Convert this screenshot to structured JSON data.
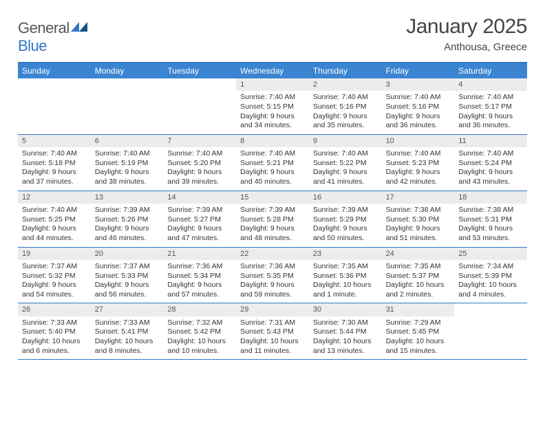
{
  "brand": {
    "word1": "General",
    "word2": "Blue"
  },
  "title": "January 2025",
  "location": "Anthousa, Greece",
  "colors": {
    "accent": "#3a84d1",
    "rule": "#2f78c4",
    "daynum_bg": "#ececec"
  },
  "dow": [
    "Sunday",
    "Monday",
    "Tuesday",
    "Wednesday",
    "Thursday",
    "Friday",
    "Saturday"
  ],
  "weeks": [
    [
      {
        "n": "",
        "lines": []
      },
      {
        "n": "",
        "lines": []
      },
      {
        "n": "",
        "lines": []
      },
      {
        "n": "1",
        "lines": [
          "Sunrise: 7:40 AM",
          "Sunset: 5:15 PM",
          "Daylight: 9 hours and 34 minutes."
        ]
      },
      {
        "n": "2",
        "lines": [
          "Sunrise: 7:40 AM",
          "Sunset: 5:16 PM",
          "Daylight: 9 hours and 35 minutes."
        ]
      },
      {
        "n": "3",
        "lines": [
          "Sunrise: 7:40 AM",
          "Sunset: 5:16 PM",
          "Daylight: 9 hours and 36 minutes."
        ]
      },
      {
        "n": "4",
        "lines": [
          "Sunrise: 7:40 AM",
          "Sunset: 5:17 PM",
          "Daylight: 9 hours and 36 minutes."
        ]
      }
    ],
    [
      {
        "n": "5",
        "lines": [
          "Sunrise: 7:40 AM",
          "Sunset: 5:18 PM",
          "Daylight: 9 hours and 37 minutes."
        ]
      },
      {
        "n": "6",
        "lines": [
          "Sunrise: 7:40 AM",
          "Sunset: 5:19 PM",
          "Daylight: 9 hours and 38 minutes."
        ]
      },
      {
        "n": "7",
        "lines": [
          "Sunrise: 7:40 AM",
          "Sunset: 5:20 PM",
          "Daylight: 9 hours and 39 minutes."
        ]
      },
      {
        "n": "8",
        "lines": [
          "Sunrise: 7:40 AM",
          "Sunset: 5:21 PM",
          "Daylight: 9 hours and 40 minutes."
        ]
      },
      {
        "n": "9",
        "lines": [
          "Sunrise: 7:40 AM",
          "Sunset: 5:22 PM",
          "Daylight: 9 hours and 41 minutes."
        ]
      },
      {
        "n": "10",
        "lines": [
          "Sunrise: 7:40 AM",
          "Sunset: 5:23 PM",
          "Daylight: 9 hours and 42 minutes."
        ]
      },
      {
        "n": "11",
        "lines": [
          "Sunrise: 7:40 AM",
          "Sunset: 5:24 PM",
          "Daylight: 9 hours and 43 minutes."
        ]
      }
    ],
    [
      {
        "n": "12",
        "lines": [
          "Sunrise: 7:40 AM",
          "Sunset: 5:25 PM",
          "Daylight: 9 hours and 44 minutes."
        ]
      },
      {
        "n": "13",
        "lines": [
          "Sunrise: 7:39 AM",
          "Sunset: 5:26 PM",
          "Daylight: 9 hours and 46 minutes."
        ]
      },
      {
        "n": "14",
        "lines": [
          "Sunrise: 7:39 AM",
          "Sunset: 5:27 PM",
          "Daylight: 9 hours and 47 minutes."
        ]
      },
      {
        "n": "15",
        "lines": [
          "Sunrise: 7:39 AM",
          "Sunset: 5:28 PM",
          "Daylight: 9 hours and 48 minutes."
        ]
      },
      {
        "n": "16",
        "lines": [
          "Sunrise: 7:39 AM",
          "Sunset: 5:29 PM",
          "Daylight: 9 hours and 50 minutes."
        ]
      },
      {
        "n": "17",
        "lines": [
          "Sunrise: 7:38 AM",
          "Sunset: 5:30 PM",
          "Daylight: 9 hours and 51 minutes."
        ]
      },
      {
        "n": "18",
        "lines": [
          "Sunrise: 7:38 AM",
          "Sunset: 5:31 PM",
          "Daylight: 9 hours and 53 minutes."
        ]
      }
    ],
    [
      {
        "n": "19",
        "lines": [
          "Sunrise: 7:37 AM",
          "Sunset: 5:32 PM",
          "Daylight: 9 hours and 54 minutes."
        ]
      },
      {
        "n": "20",
        "lines": [
          "Sunrise: 7:37 AM",
          "Sunset: 5:33 PM",
          "Daylight: 9 hours and 56 minutes."
        ]
      },
      {
        "n": "21",
        "lines": [
          "Sunrise: 7:36 AM",
          "Sunset: 5:34 PM",
          "Daylight: 9 hours and 57 minutes."
        ]
      },
      {
        "n": "22",
        "lines": [
          "Sunrise: 7:36 AM",
          "Sunset: 5:35 PM",
          "Daylight: 9 hours and 59 minutes."
        ]
      },
      {
        "n": "23",
        "lines": [
          "Sunrise: 7:35 AM",
          "Sunset: 5:36 PM",
          "Daylight: 10 hours and 1 minute."
        ]
      },
      {
        "n": "24",
        "lines": [
          "Sunrise: 7:35 AM",
          "Sunset: 5:37 PM",
          "Daylight: 10 hours and 2 minutes."
        ]
      },
      {
        "n": "25",
        "lines": [
          "Sunrise: 7:34 AM",
          "Sunset: 5:39 PM",
          "Daylight: 10 hours and 4 minutes."
        ]
      }
    ],
    [
      {
        "n": "26",
        "lines": [
          "Sunrise: 7:33 AM",
          "Sunset: 5:40 PM",
          "Daylight: 10 hours and 6 minutes."
        ]
      },
      {
        "n": "27",
        "lines": [
          "Sunrise: 7:33 AM",
          "Sunset: 5:41 PM",
          "Daylight: 10 hours and 8 minutes."
        ]
      },
      {
        "n": "28",
        "lines": [
          "Sunrise: 7:32 AM",
          "Sunset: 5:42 PM",
          "Daylight: 10 hours and 10 minutes."
        ]
      },
      {
        "n": "29",
        "lines": [
          "Sunrise: 7:31 AM",
          "Sunset: 5:43 PM",
          "Daylight: 10 hours and 11 minutes."
        ]
      },
      {
        "n": "30",
        "lines": [
          "Sunrise: 7:30 AM",
          "Sunset: 5:44 PM",
          "Daylight: 10 hours and 13 minutes."
        ]
      },
      {
        "n": "31",
        "lines": [
          "Sunrise: 7:29 AM",
          "Sunset: 5:45 PM",
          "Daylight: 10 hours and 15 minutes."
        ]
      },
      {
        "n": "",
        "lines": []
      }
    ]
  ]
}
